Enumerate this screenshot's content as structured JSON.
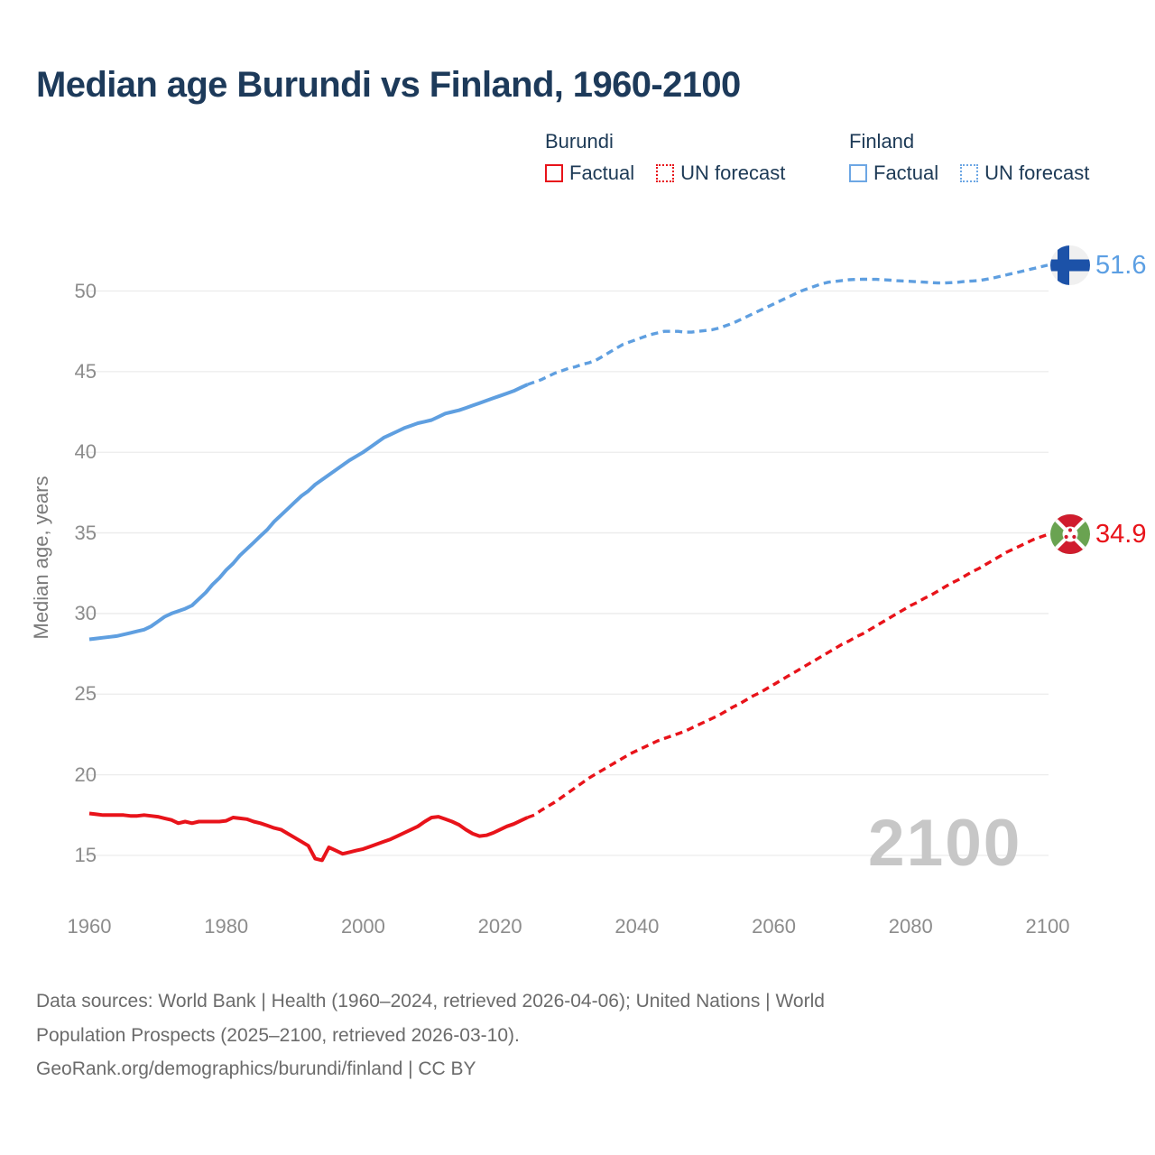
{
  "header": {
    "title": "Median age Burundi vs Finland, 1960-2100"
  },
  "legend": {
    "groups": [
      {
        "label": "Burundi",
        "color": "#e8131a",
        "items": [
          {
            "label": "Factual",
            "style": "solid"
          },
          {
            "label": "UN forecast",
            "style": "dotted"
          }
        ]
      },
      {
        "label": "Finland",
        "color": "#6da7e4",
        "items": [
          {
            "label": "Factual",
            "style": "solid"
          },
          {
            "label": "UN forecast",
            "style": "dotted"
          }
        ]
      }
    ]
  },
  "chart_data": {
    "type": "line",
    "title": "Median age Burundi vs Finland, 1960-2100",
    "xlabel": "",
    "ylabel": "Median age, years",
    "xlim": [
      1960,
      2100
    ],
    "ylim": [
      13.5,
      53
    ],
    "x_ticks": [
      1960,
      1980,
      2000,
      2020,
      2040,
      2060,
      2080,
      2100
    ],
    "y_ticks": [
      15,
      20,
      25,
      30,
      35,
      40,
      45,
      50
    ],
    "grid": "horizontal",
    "legend_position": "top-right",
    "watermark": "2100",
    "end_labels": [
      {
        "id": "finland",
        "text": "51.6",
        "color": "#5c9fe3",
        "flag": "finland"
      },
      {
        "id": "burundi",
        "text": "34.9",
        "color": "#e8131a",
        "flag": "burundi"
      }
    ],
    "series": [
      {
        "name": "Burundi factual",
        "color": "#e8131a",
        "dash": "solid",
        "width": 4,
        "points": [
          [
            1960,
            17.6
          ],
          [
            1961,
            17.55
          ],
          [
            1962,
            17.5
          ],
          [
            1963,
            17.5
          ],
          [
            1964,
            17.5
          ],
          [
            1965,
            17.5
          ],
          [
            1966,
            17.45
          ],
          [
            1967,
            17.45
          ],
          [
            1968,
            17.5
          ],
          [
            1969,
            17.45
          ],
          [
            1970,
            17.4
          ],
          [
            1971,
            17.3
          ],
          [
            1972,
            17.2
          ],
          [
            1973,
            17.0
          ],
          [
            1974,
            17.1
          ],
          [
            1975,
            17.0
          ],
          [
            1976,
            17.1
          ],
          [
            1977,
            17.1
          ],
          [
            1978,
            17.1
          ],
          [
            1979,
            17.1
          ],
          [
            1980,
            17.15
          ],
          [
            1981,
            17.35
          ],
          [
            1982,
            17.3
          ],
          [
            1983,
            17.25
          ],
          [
            1984,
            17.1
          ],
          [
            1985,
            17.0
          ],
          [
            1986,
            16.85
          ],
          [
            1987,
            16.7
          ],
          [
            1988,
            16.6
          ],
          [
            1989,
            16.35
          ],
          [
            1990,
            16.1
          ],
          [
            1991,
            15.85
          ],
          [
            1992,
            15.6
          ],
          [
            1993,
            14.8
          ],
          [
            1994,
            14.7
          ],
          [
            1995,
            15.5
          ],
          [
            1996,
            15.3
          ],
          [
            1997,
            15.1
          ],
          [
            1998,
            15.2
          ],
          [
            1999,
            15.3
          ],
          [
            2000,
            15.4
          ],
          [
            2001,
            15.55
          ],
          [
            2002,
            15.7
          ],
          [
            2003,
            15.85
          ],
          [
            2004,
            16.0
          ],
          [
            2005,
            16.2
          ],
          [
            2006,
            16.4
          ],
          [
            2007,
            16.6
          ],
          [
            2008,
            16.8
          ],
          [
            2009,
            17.1
          ],
          [
            2010,
            17.35
          ],
          [
            2011,
            17.4
          ],
          [
            2012,
            17.25
          ],
          [
            2013,
            17.1
          ],
          [
            2014,
            16.9
          ],
          [
            2015,
            16.6
          ],
          [
            2016,
            16.35
          ],
          [
            2017,
            16.2
          ],
          [
            2018,
            16.25
          ],
          [
            2019,
            16.4
          ],
          [
            2020,
            16.6
          ],
          [
            2021,
            16.8
          ],
          [
            2022,
            16.95
          ],
          [
            2023,
            17.15
          ],
          [
            2024,
            17.35
          ]
        ]
      },
      {
        "name": "Burundi UN forecast",
        "color": "#e8131a",
        "dash": "dashed",
        "width": 3.4,
        "points": [
          [
            2024,
            17.35
          ],
          [
            2025,
            17.5
          ],
          [
            2026,
            17.8
          ],
          [
            2027,
            18.05
          ],
          [
            2028,
            18.3
          ],
          [
            2029,
            18.6
          ],
          [
            2030,
            18.9
          ],
          [
            2031,
            19.2
          ],
          [
            2032,
            19.5
          ],
          [
            2033,
            19.8
          ],
          [
            2034,
            20.05
          ],
          [
            2035,
            20.3
          ],
          [
            2036,
            20.55
          ],
          [
            2037,
            20.8
          ],
          [
            2038,
            21.05
          ],
          [
            2039,
            21.3
          ],
          [
            2040,
            21.5
          ],
          [
            2041,
            21.7
          ],
          [
            2042,
            21.9
          ],
          [
            2043,
            22.1
          ],
          [
            2044,
            22.25
          ],
          [
            2045,
            22.4
          ],
          [
            2046,
            22.55
          ],
          [
            2047,
            22.7
          ],
          [
            2048,
            22.9
          ],
          [
            2049,
            23.1
          ],
          [
            2050,
            23.3
          ],
          [
            2051,
            23.5
          ],
          [
            2052,
            23.7
          ],
          [
            2053,
            23.95
          ],
          [
            2054,
            24.2
          ],
          [
            2055,
            24.4
          ],
          [
            2056,
            24.65
          ],
          [
            2057,
            24.9
          ],
          [
            2058,
            25.1
          ],
          [
            2059,
            25.35
          ],
          [
            2060,
            25.6
          ],
          [
            2061,
            25.85
          ],
          [
            2062,
            26.1
          ],
          [
            2063,
            26.35
          ],
          [
            2064,
            26.6
          ],
          [
            2065,
            26.85
          ],
          [
            2066,
            27.1
          ],
          [
            2067,
            27.35
          ],
          [
            2068,
            27.6
          ],
          [
            2069,
            27.85
          ],
          [
            2070,
            28.1
          ],
          [
            2071,
            28.3
          ],
          [
            2072,
            28.55
          ],
          [
            2073,
            28.75
          ],
          [
            2074,
            29.0
          ],
          [
            2075,
            29.25
          ],
          [
            2076,
            29.5
          ],
          [
            2077,
            29.75
          ],
          [
            2078,
            30.0
          ],
          [
            2079,
            30.25
          ],
          [
            2080,
            30.5
          ],
          [
            2081,
            30.7
          ],
          [
            2082,
            30.95
          ],
          [
            2083,
            31.15
          ],
          [
            2084,
            31.4
          ],
          [
            2085,
            31.65
          ],
          [
            2086,
            31.9
          ],
          [
            2087,
            32.1
          ],
          [
            2088,
            32.35
          ],
          [
            2089,
            32.6
          ],
          [
            2090,
            32.8
          ],
          [
            2091,
            33.05
          ],
          [
            2092,
            33.3
          ],
          [
            2093,
            33.55
          ],
          [
            2094,
            33.8
          ],
          [
            2095,
            34.0
          ],
          [
            2096,
            34.2
          ],
          [
            2097,
            34.4
          ],
          [
            2098,
            34.6
          ],
          [
            2099,
            34.75
          ],
          [
            2100,
            34.9
          ]
        ]
      },
      {
        "name": "Finland factual",
        "color": "#5f9fe0",
        "dash": "solid",
        "width": 4,
        "points": [
          [
            1960,
            28.4
          ],
          [
            1961,
            28.45
          ],
          [
            1962,
            28.5
          ],
          [
            1963,
            28.55
          ],
          [
            1964,
            28.6
          ],
          [
            1965,
            28.7
          ],
          [
            1966,
            28.8
          ],
          [
            1967,
            28.9
          ],
          [
            1968,
            29.0
          ],
          [
            1969,
            29.2
          ],
          [
            1970,
            29.5
          ],
          [
            1971,
            29.8
          ],
          [
            1972,
            30.0
          ],
          [
            1973,
            30.15
          ],
          [
            1974,
            30.3
          ],
          [
            1975,
            30.5
          ],
          [
            1976,
            30.9
          ],
          [
            1977,
            31.3
          ],
          [
            1978,
            31.8
          ],
          [
            1979,
            32.2
          ],
          [
            1980,
            32.7
          ],
          [
            1981,
            33.1
          ],
          [
            1982,
            33.6
          ],
          [
            1983,
            34.0
          ],
          [
            1984,
            34.4
          ],
          [
            1985,
            34.8
          ],
          [
            1986,
            35.2
          ],
          [
            1987,
            35.7
          ],
          [
            1988,
            36.1
          ],
          [
            1989,
            36.5
          ],
          [
            1990,
            36.9
          ],
          [
            1991,
            37.3
          ],
          [
            1992,
            37.6
          ],
          [
            1993,
            38.0
          ],
          [
            1994,
            38.3
          ],
          [
            1995,
            38.6
          ],
          [
            1996,
            38.9
          ],
          [
            1997,
            39.2
          ],
          [
            1998,
            39.5
          ],
          [
            1999,
            39.75
          ],
          [
            2000,
            40.0
          ],
          [
            2001,
            40.3
          ],
          [
            2002,
            40.6
          ],
          [
            2003,
            40.9
          ],
          [
            2004,
            41.1
          ],
          [
            2005,
            41.3
          ],
          [
            2006,
            41.5
          ],
          [
            2007,
            41.65
          ],
          [
            2008,
            41.8
          ],
          [
            2009,
            41.9
          ],
          [
            2010,
            42.0
          ],
          [
            2011,
            42.2
          ],
          [
            2012,
            42.4
          ],
          [
            2013,
            42.5
          ],
          [
            2014,
            42.6
          ],
          [
            2015,
            42.75
          ],
          [
            2016,
            42.9
          ],
          [
            2017,
            43.05
          ],
          [
            2018,
            43.2
          ],
          [
            2019,
            43.35
          ],
          [
            2020,
            43.5
          ],
          [
            2021,
            43.65
          ],
          [
            2022,
            43.8
          ],
          [
            2023,
            44.0
          ],
          [
            2024,
            44.2
          ]
        ]
      },
      {
        "name": "Finland UN forecast",
        "color": "#5f9fe0",
        "dash": "dashed",
        "width": 3.4,
        "points": [
          [
            2024,
            44.2
          ],
          [
            2025,
            44.35
          ],
          [
            2026,
            44.5
          ],
          [
            2027,
            44.7
          ],
          [
            2028,
            44.9
          ],
          [
            2029,
            45.05
          ],
          [
            2030,
            45.2
          ],
          [
            2031,
            45.3
          ],
          [
            2032,
            45.45
          ],
          [
            2033,
            45.55
          ],
          [
            2034,
            45.7
          ],
          [
            2035,
            45.95
          ],
          [
            2036,
            46.2
          ],
          [
            2037,
            46.45
          ],
          [
            2038,
            46.7
          ],
          [
            2039,
            46.85
          ],
          [
            2040,
            47.0
          ],
          [
            2041,
            47.15
          ],
          [
            2042,
            47.3
          ],
          [
            2043,
            47.4
          ],
          [
            2044,
            47.5
          ],
          [
            2045,
            47.5
          ],
          [
            2046,
            47.5
          ],
          [
            2047,
            47.45
          ],
          [
            2048,
            47.45
          ],
          [
            2049,
            47.5
          ],
          [
            2050,
            47.55
          ],
          [
            2051,
            47.6
          ],
          [
            2052,
            47.7
          ],
          [
            2053,
            47.85
          ],
          [
            2054,
            48.0
          ],
          [
            2055,
            48.2
          ],
          [
            2056,
            48.4
          ],
          [
            2057,
            48.6
          ],
          [
            2058,
            48.8
          ],
          [
            2059,
            49.0
          ],
          [
            2060,
            49.2
          ],
          [
            2061,
            49.4
          ],
          [
            2062,
            49.6
          ],
          [
            2063,
            49.8
          ],
          [
            2064,
            50.0
          ],
          [
            2065,
            50.15
          ],
          [
            2066,
            50.3
          ],
          [
            2067,
            50.45
          ],
          [
            2068,
            50.55
          ],
          [
            2069,
            50.6
          ],
          [
            2070,
            50.65
          ],
          [
            2071,
            50.7
          ],
          [
            2072,
            50.72
          ],
          [
            2073,
            50.73
          ],
          [
            2074,
            50.73
          ],
          [
            2075,
            50.72
          ],
          [
            2076,
            50.7
          ],
          [
            2077,
            50.67
          ],
          [
            2078,
            50.64
          ],
          [
            2079,
            50.62
          ],
          [
            2080,
            50.6
          ],
          [
            2081,
            50.57
          ],
          [
            2082,
            50.55
          ],
          [
            2083,
            50.52
          ],
          [
            2084,
            50.5
          ],
          [
            2085,
            50.5
          ],
          [
            2086,
            50.52
          ],
          [
            2087,
            50.55
          ],
          [
            2088,
            50.6
          ],
          [
            2089,
            50.62
          ],
          [
            2090,
            50.65
          ],
          [
            2091,
            50.72
          ],
          [
            2092,
            50.8
          ],
          [
            2093,
            50.9
          ],
          [
            2094,
            51.0
          ],
          [
            2095,
            51.1
          ],
          [
            2096,
            51.2
          ],
          [
            2097,
            51.3
          ],
          [
            2098,
            51.4
          ],
          [
            2099,
            51.5
          ],
          [
            2100,
            51.6
          ]
        ]
      }
    ]
  },
  "footer": {
    "lines": [
      "Data sources: World Bank | Health (1960–2024, retrieved 2026-04-06); United Nations | World",
      "Population Prospects (2025–2100, retrieved 2026-03-10).",
      "GeoRank.org/demographics/burundi/finland | CC BY"
    ]
  }
}
